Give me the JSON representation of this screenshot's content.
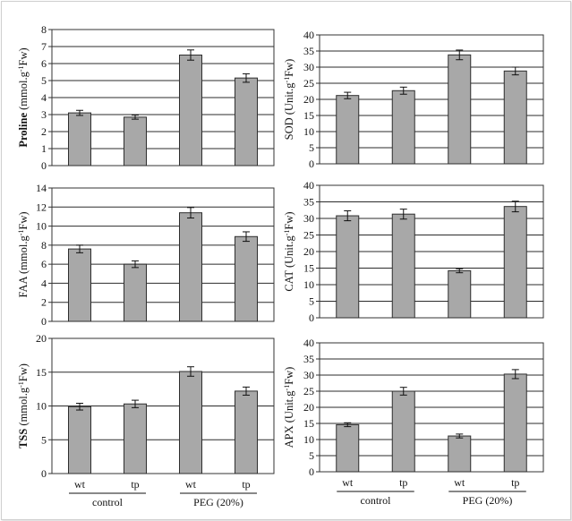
{
  "chart_data": [
    {
      "type": "bar",
      "ylabel": "Proline",
      "yunit": " (mmol.g",
      "yunit_sup": "-1",
      "yunit_end": "Fw)",
      "ylabel_bold": true,
      "ylim": [
        0,
        8
      ],
      "yticks": [
        0,
        1,
        2,
        3,
        4,
        5,
        6,
        7,
        8
      ],
      "categories": [
        "wt",
        "tp",
        "wt",
        "tp"
      ],
      "values": [
        3.1,
        2.85,
        6.5,
        5.15
      ],
      "errors": [
        0.15,
        0.12,
        0.3,
        0.25
      ],
      "show_xlabels": false
    },
    {
      "type": "bar",
      "ylabel": "SOD",
      "yunit": " (Unit.g",
      "yunit_sup": "-1",
      "yunit_end": "Fw)",
      "ylabel_bold": false,
      "ylim": [
        0,
        40
      ],
      "yticks": [
        0,
        5,
        10,
        15,
        20,
        25,
        30,
        35,
        40
      ],
      "categories": [
        "wt",
        "tp",
        "wt",
        "tp"
      ],
      "values": [
        21.2,
        22.7,
        33.8,
        28.8
      ],
      "errors": [
        1.0,
        1.1,
        1.5,
        1.2
      ],
      "show_xlabels": false
    },
    {
      "type": "bar",
      "ylabel": "FAA",
      "yunit": " (mmol.g",
      "yunit_sup": "-1",
      "yunit_end": "Fw)",
      "ylabel_bold": false,
      "ylim": [
        0,
        14
      ],
      "yticks": [
        0,
        2,
        4,
        6,
        8,
        10,
        12,
        14
      ],
      "categories": [
        "wt",
        "tp",
        "wt",
        "tp"
      ],
      "values": [
        7.6,
        6.0,
        11.4,
        8.9
      ],
      "errors": [
        0.4,
        0.35,
        0.55,
        0.5
      ],
      "show_xlabels": false
    },
    {
      "type": "bar",
      "ylabel": "CAT",
      "yunit": " (Unit.g",
      "yunit_sup": "-1",
      "yunit_end": "Fw)",
      "ylabel_bold": false,
      "ylim": [
        0,
        40
      ],
      "yticks": [
        0,
        5,
        10,
        15,
        20,
        25,
        30,
        35,
        40
      ],
      "categories": [
        "wt",
        "tp",
        "wt",
        "tp"
      ],
      "values": [
        30.8,
        31.3,
        14.2,
        33.6
      ],
      "errors": [
        1.5,
        1.5,
        0.6,
        1.6
      ],
      "show_xlabels": false
    },
    {
      "type": "bar",
      "ylabel": "TSS",
      "yunit": " (mmol.g",
      "yunit_sup": "-1",
      "yunit_end": "Fw)",
      "ylabel_bold": true,
      "ylim": [
        0,
        20
      ],
      "yticks": [
        0,
        5,
        10,
        15,
        20
      ],
      "categories": [
        "wt",
        "tp",
        "wt",
        "tp"
      ],
      "values": [
        9.9,
        10.3,
        15.1,
        12.2
      ],
      "errors": [
        0.5,
        0.55,
        0.7,
        0.6
      ],
      "show_xlabels": true
    },
    {
      "type": "bar",
      "ylabel": "APX",
      "yunit": " (Unit.g",
      "yunit_sup": "-1",
      "yunit_end": "Fw)",
      "ylabel_bold": false,
      "ylim": [
        0,
        40
      ],
      "yticks": [
        0,
        5,
        10,
        15,
        20,
        25,
        30,
        35,
        40
      ],
      "categories": [
        "wt",
        "tp",
        "wt",
        "tp"
      ],
      "values": [
        14.6,
        25.0,
        11.1,
        30.3
      ],
      "errors": [
        0.6,
        1.2,
        0.6,
        1.4
      ],
      "show_xlabels": true
    }
  ],
  "groups": [
    "control",
    "PEG  (20%)"
  ],
  "colors": {
    "bar": "#a8a8a8",
    "bar_stroke": "#2e2e2e",
    "grid": "#2b2b2b",
    "axis": "#333333"
  }
}
